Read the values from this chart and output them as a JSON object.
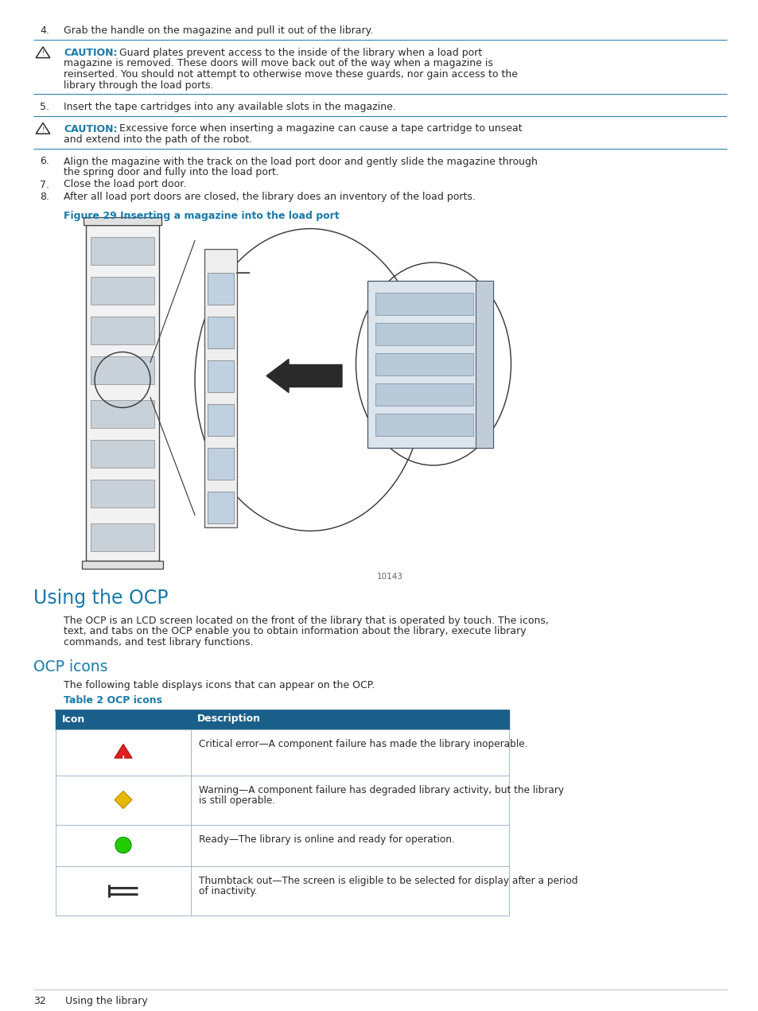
{
  "page_bg": "#ffffff",
  "blue_heading": "#1a7aaa",
  "table_header_bg": "#1a5f8a",
  "table_border": "#1a5f8a",
  "table_row_border": "#a0b8cc",
  "text_color": "#2a2a2a",
  "caution_color": "#1a7aaa",
  "line_sep_color": "#1a7aaa",
  "step4": "Grab the handle on the magazine and pull it out of the library.",
  "caution1_bold": "CAUTION:",
  "caution1_line1": "   Guard plates prevent access to the inside of the library when a load port",
  "caution1_line2": "magazine is removed. These doors will move back out of the way when a magazine is",
  "caution1_line3": "reinserted. You should not attempt to otherwise move these guards, nor gain access to the",
  "caution1_line4": "library through the load ports.",
  "step5": "Insert the tape cartridges into any available slots in the magazine.",
  "caution2_bold": "CAUTION:",
  "caution2_line1": "   Excessive force when inserting a magazine can cause a tape cartridge to unseat",
  "caution2_line2": "and extend into the path of the robot.",
  "step6a": "Align the magazine with the track on the load port door and gently slide the magazine through",
  "step6b": "the spring door and fully into the load port.",
  "step7": "Close the load port door.",
  "step8": "After all load port doors are closed, the library does an inventory of the load ports.",
  "fig_caption": "Figure 29 Inserting a magazine into the load port",
  "fig_number": "10143",
  "section_title": "Using the OCP",
  "ocp_body1": "The OCP is an LCD screen located on the front of the library that is operated by touch. The icons,",
  "ocp_body2": "text, and tabs on the OCP enable you to obtain information about the library, execute library",
  "ocp_body3": "commands, and test library functions.",
  "subsection_title": "OCP icons",
  "subsection_body": "The following table displays icons that can appear on the OCP.",
  "table_title": "Table 2 OCP icons",
  "table_col1": "Icon",
  "table_col2": "Description",
  "table_rows": [
    {
      "desc1": "Critical error—A component failure has made the library inoperable.",
      "desc2": "",
      "icon_type": "red_triangle"
    },
    {
      "desc1": "Warning—A component failure has degraded library activity, but the library",
      "desc2": "is still operable.",
      "icon_type": "yellow_diamond"
    },
    {
      "desc1": "Ready—The library is online and ready for operation.",
      "desc2": "",
      "icon_type": "green_circle"
    },
    {
      "desc1": "Thumbtack out—The screen is eligible to be selected for display after a period",
      "desc2": "of inactivity.",
      "icon_type": "thumbtack"
    }
  ],
  "footer_page": "32",
  "footer_text": "Using the library"
}
